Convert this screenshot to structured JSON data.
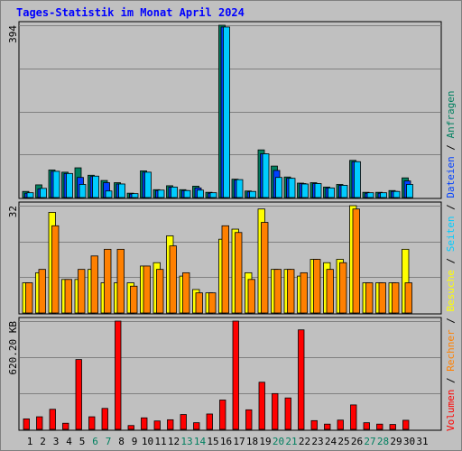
{
  "title": "Tages-Statistik im Monat April 2024",
  "colors": {
    "title": "#0000ff",
    "background": "#c0c0c0",
    "grid": "#808080",
    "anfragen": "#008060",
    "dateien": "#0040ff",
    "seiten": "#00ccff",
    "besuche": "#ffff00",
    "rechner": "#ff8000",
    "volumen": "#ff0000",
    "weekend": "#008060",
    "weekday": "#000000"
  },
  "legend": {
    "anfragen": "Anfragen",
    "dateien": "Dateien",
    "seiten": "Seiten",
    "besuche": "Besuche",
    "rechner": "Rechner",
    "volumen": "Volumen",
    "sep": "/"
  },
  "chart_data": [
    {
      "type": "bar",
      "name": "top",
      "ymax_label": "394",
      "ylim": [
        0,
        394
      ],
      "grid": true,
      "categories": [
        "1",
        "2",
        "3",
        "4",
        "5",
        "6",
        "7",
        "8",
        "9",
        "10",
        "11",
        "12",
        "13",
        "14",
        "15",
        "16",
        "17",
        "18",
        "19",
        "20",
        "21",
        "22",
        "23",
        "24",
        "25",
        "26",
        "27",
        "28",
        "29",
        "30",
        "31"
      ],
      "weekend_days": [
        6,
        7,
        13,
        14,
        20,
        21,
        27,
        28
      ],
      "series": [
        {
          "name": "Anfragen",
          "values": [
            14,
            29,
            63,
            58,
            68,
            51,
            39,
            34,
            10,
            61,
            18,
            27,
            18,
            26,
            12,
            394,
            42,
            15,
            109,
            72,
            47,
            33,
            34,
            24,
            30,
            85,
            12,
            12,
            16,
            45,
            0
          ]
        },
        {
          "name": "Dateien",
          "values": [
            10,
            20,
            60,
            55,
            46,
            48,
            34,
            31,
            8,
            58,
            16,
            24,
            16,
            22,
            10,
            390,
            40,
            13,
            100,
            62,
            44,
            32,
            32,
            22,
            28,
            82,
            10,
            10,
            14,
            38,
            0
          ]
        },
        {
          "name": "Seiten",
          "values": [
            11,
            21,
            60,
            55,
            30,
            49,
            15,
            31,
            9,
            58,
            17,
            24,
            16,
            17,
            11,
            390,
            41,
            14,
            100,
            46,
            44,
            31,
            32,
            22,
            28,
            82,
            11,
            11,
            14,
            30,
            0
          ]
        }
      ]
    },
    {
      "type": "bar",
      "name": "middle",
      "ymax_label": "32",
      "ylim": [
        0,
        32
      ],
      "grid": true,
      "categories": [
        "1",
        "2",
        "3",
        "4",
        "5",
        "6",
        "7",
        "8",
        "9",
        "10",
        "11",
        "12",
        "13",
        "14",
        "15",
        "16",
        "17",
        "18",
        "19",
        "20",
        "21",
        "22",
        "23",
        "24",
        "25",
        "26",
        "27",
        "28",
        "29",
        "30",
        "31"
      ],
      "series": [
        {
          "name": "Besuche",
          "values": [
            9,
            12,
            30,
            10,
            10,
            13,
            9,
            9,
            9,
            14,
            15,
            23,
            11,
            7,
            6,
            22,
            25,
            12,
            31,
            13,
            13,
            11,
            16,
            15,
            16,
            32,
            9,
            9,
            9,
            19,
            0
          ]
        },
        {
          "name": "Rechner",
          "values": [
            9,
            13,
            26,
            10,
            13,
            17,
            19,
            19,
            8,
            14,
            13,
            20,
            12,
            6,
            6,
            26,
            24,
            10,
            27,
            13,
            13,
            12,
            16,
            13,
            15,
            31,
            9,
            9,
            9,
            9,
            0
          ]
        }
      ]
    },
    {
      "type": "bar",
      "name": "bottom",
      "ymax_label": "620.20 KB",
      "ylim": [
        0,
        620.2
      ],
      "grid": true,
      "categories": [
        "1",
        "2",
        "3",
        "4",
        "5",
        "6",
        "7",
        "8",
        "9",
        "10",
        "11",
        "12",
        "13",
        "14",
        "15",
        "16",
        "17",
        "18",
        "19",
        "20",
        "21",
        "22",
        "23",
        "24",
        "25",
        "26",
        "27",
        "28",
        "29",
        "30",
        "31"
      ],
      "series": [
        {
          "name": "Volumen",
          "values": [
            60,
            72,
            115,
            35,
            400,
            72,
            120,
            620,
            22,
            66,
            48,
            55,
            85,
            38,
            88,
            168,
            620,
            112,
            270,
            205,
            180,
            570,
            50,
            30,
            53,
            140,
            38,
            30,
            28,
            52,
            0
          ]
        }
      ]
    }
  ]
}
